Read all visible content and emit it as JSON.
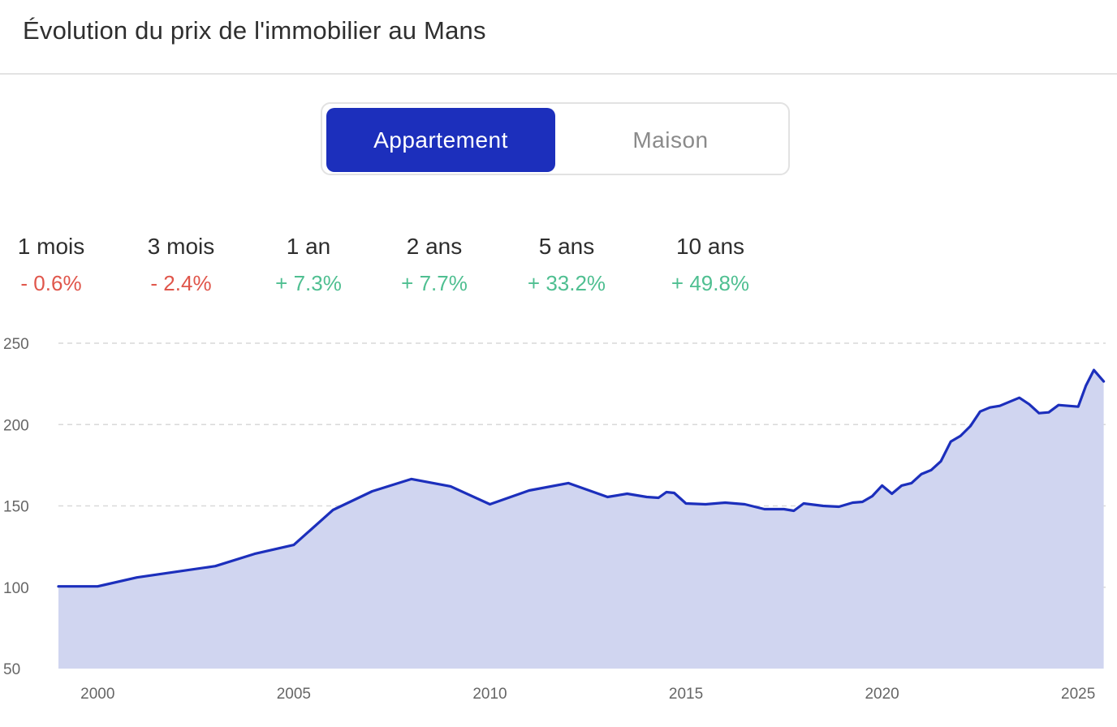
{
  "header": {
    "title": "Évolution du prix de l'immobilier au Mans"
  },
  "toggle": {
    "options": [
      "Appartement",
      "Maison"
    ],
    "selected": "Appartement"
  },
  "colors": {
    "negative": "#e0564b",
    "positive": "#4fbf91",
    "accent": "#1c2fbc",
    "fill": "#d0d5f0"
  },
  "stats": [
    {
      "label": "1 mois",
      "value": "- 0.6%",
      "trend": "negative"
    },
    {
      "label": "3 mois",
      "value": "- 2.4%",
      "trend": "negative"
    },
    {
      "label": "1 an",
      "value": "+ 7.3%",
      "trend": "positive"
    },
    {
      "label": "2 ans",
      "value": "+ 7.7%",
      "trend": "positive"
    },
    {
      "label": "5 ans",
      "value": "+ 33.2%",
      "trend": "positive"
    },
    {
      "label": "10 ans",
      "value": "+ 49.8%",
      "trend": "positive"
    }
  ],
  "chart_data": {
    "type": "area",
    "title": "",
    "xlabel": "",
    "ylabel": "",
    "xlim": [
      1999,
      2025.7
    ],
    "ylim": [
      50,
      250
    ],
    "y_ticks": [
      50,
      100,
      150,
      200,
      250
    ],
    "x_ticks": [
      2000,
      2005,
      2010,
      2015,
      2020,
      2025
    ],
    "grid": true,
    "series": [
      {
        "x": [
          1999.0,
          2000.0,
          2001.0,
          2002.0,
          2003.0,
          2004.0,
          2005.0,
          2006.0,
          2007.0,
          2008.0,
          2009.0,
          2010.0,
          2011.0,
          2012.0,
          2013.0,
          2013.5,
          2014.0,
          2014.3,
          2014.5,
          2014.7,
          2015.0,
          2015.5,
          2016.0,
          2016.5,
          2017.0,
          2017.5,
          2017.75,
          2018.0,
          2018.5,
          2018.9,
          2019.25,
          2019.5,
          2019.75,
          2020.0,
          2020.25,
          2020.5,
          2020.75,
          2021.0,
          2021.25,
          2021.5,
          2021.75,
          2022.0,
          2022.25,
          2022.5,
          2022.75,
          2023.0,
          2023.25,
          2023.5,
          2023.75,
          2024.0,
          2024.25,
          2024.5,
          2024.75,
          2025.0,
          2025.2,
          2025.4,
          2025.65
        ],
        "values": [
          100.5,
          100.5,
          106,
          109.5,
          113,
          120.5,
          126,
          147.5,
          159,
          166.5,
          162,
          151,
          159.5,
          164,
          155.5,
          157.5,
          155.5,
          155,
          158.5,
          158,
          151.5,
          151,
          152,
          151,
          148,
          148,
          147,
          151.5,
          150,
          149.5,
          152,
          152.5,
          156,
          162.5,
          157.5,
          162.5,
          164,
          169.5,
          172,
          177.5,
          189.5,
          193,
          199,
          208,
          210.5,
          211.5,
          214,
          216.5,
          212.5,
          207,
          207.5,
          212,
          211.5,
          211,
          224,
          233.5,
          226.5
        ]
      }
    ]
  }
}
